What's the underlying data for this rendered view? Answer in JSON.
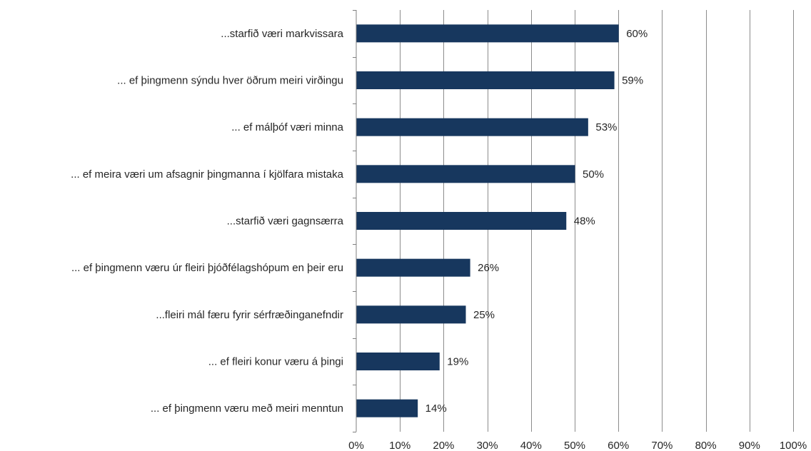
{
  "chart_data": {
    "type": "bar",
    "orientation": "horizontal",
    "title": "",
    "xlabel": "",
    "ylabel": "",
    "xlim": [
      0,
      100
    ],
    "grid": true,
    "legend": "none",
    "bar_color": "#17375e",
    "categories": [
      "...starfið væri markvissara",
      "... ef þingmenn sýndu hver öðrum meiri virðingu",
      "... ef málþóf væri minna",
      "... ef meira væri um afsagnir þingmanna í kjölfara mistaka",
      "...starfið væri gagnsærra",
      "... ef þingmenn væru úr fleiri þjóðfélagshópum en þeir eru",
      "...fleiri mál færu fyrir sérfræðinganefndir",
      "... ef fleiri konur væru á þingi",
      "... ef þingmenn væru með meiri menntun"
    ],
    "values": [
      60,
      59,
      53,
      50,
      48,
      26,
      25,
      19,
      14
    ],
    "data_labels": [
      "60%",
      "59%",
      "53%",
      "50%",
      "48%",
      "26%",
      "25%",
      "19%",
      "14%"
    ],
    "ticks": [
      0,
      10,
      20,
      30,
      40,
      50,
      60,
      70,
      80,
      90,
      100
    ],
    "tick_labels": [
      "0%",
      "10%",
      "20%",
      "30%",
      "40%",
      "50%",
      "60%",
      "70%",
      "80%",
      "90%",
      "100%"
    ]
  }
}
